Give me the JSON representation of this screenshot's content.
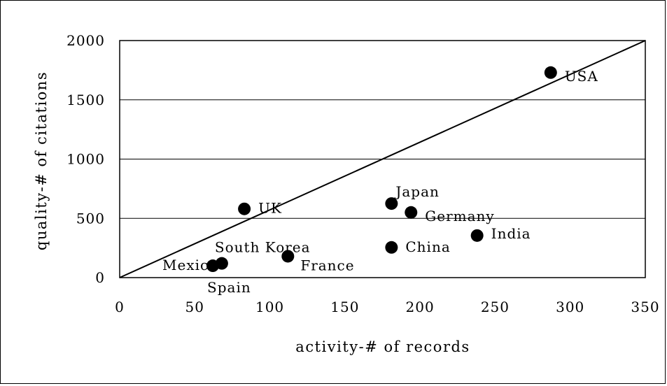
{
  "chart_data": {
    "type": "scatter",
    "title": "",
    "xlabel": "activity-# of records",
    "ylabel": "quality-# of citations",
    "xlim": [
      0,
      350
    ],
    "ylim": [
      0,
      2000
    ],
    "xticks": [
      0,
      50,
      100,
      150,
      200,
      250,
      300,
      350
    ],
    "yticks": [
      0,
      500,
      1000,
      1500,
      2000
    ],
    "grid": "horizontal",
    "reference_line": {
      "from": [
        0,
        0
      ],
      "to": [
        350,
        2000
      ]
    },
    "points": [
      {
        "label": "USA",
        "x": 287,
        "y": 1730
      },
      {
        "label": "UK",
        "x": 83,
        "y": 580
      },
      {
        "label": "Japan",
        "x": 181,
        "y": 625
      },
      {
        "label": "Germany",
        "x": 194,
        "y": 550
      },
      {
        "label": "India",
        "x": 238,
        "y": 355
      },
      {
        "label": "China",
        "x": 181,
        "y": 255
      },
      {
        "label": "France",
        "x": 112,
        "y": 180
      },
      {
        "label": "South Korea",
        "x": 68,
        "y": 120
      },
      {
        "label": "Mexico",
        "x": 62,
        "y": 100
      },
      {
        "label": "Spain",
        "x": 62,
        "y": 100
      }
    ],
    "point_color": "#000000"
  }
}
